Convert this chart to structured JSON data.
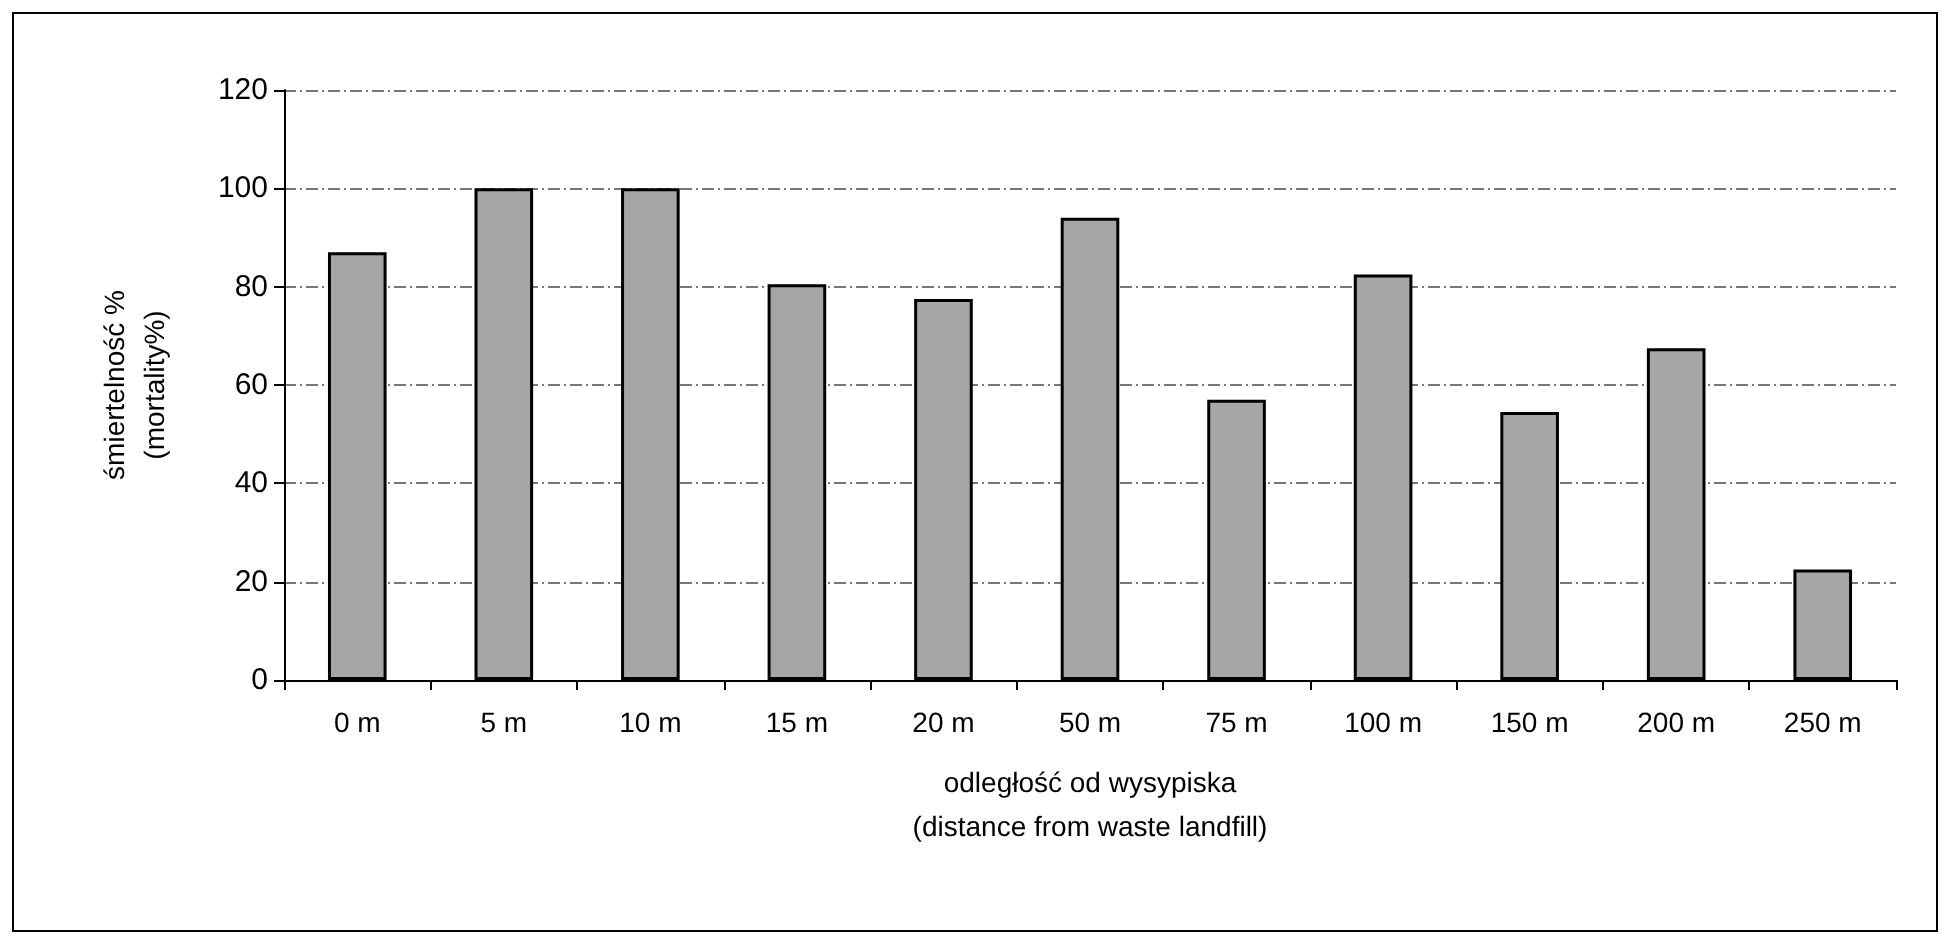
{
  "chart_data": {
    "type": "bar",
    "xlabel": "odległość od wysypiska\n(distance from waste landfill)",
    "ylabel": "śmiertelność %\n(mortality%)",
    "categories": [
      "0 m",
      "5 m",
      "10 m",
      "15 m",
      "20 m",
      "50 m",
      "75 m",
      "100 m",
      "150 m",
      "200 m",
      "250 m"
    ],
    "values": [
      87,
      100,
      100,
      80.5,
      77.5,
      94,
      57,
      82.5,
      54.5,
      67.5,
      22.5
    ],
    "color": "#a6a6a6",
    "ylim": [
      0,
      120
    ],
    "yticks": [
      0,
      20,
      40,
      60,
      80,
      100,
      120
    ],
    "grid": "y"
  }
}
